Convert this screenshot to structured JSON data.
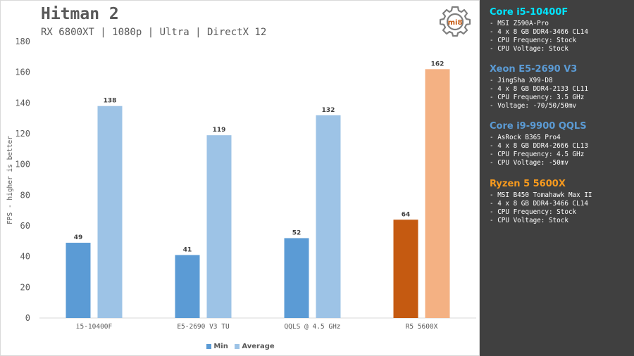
{
  "chart": {
    "title": "Hitman 2",
    "subtitle": "RX 6800XT | 1080p | Ultra | DirectX 12",
    "logo_text": "mi8"
  },
  "legend": {
    "items": [
      {
        "label": "Min",
        "color": "#5b9bd5"
      },
      {
        "label": "Average",
        "color": "#9dc3e6"
      }
    ]
  },
  "chart_data": {
    "type": "bar",
    "title": "Hitman 2",
    "subtitle": "RX 6800XT | 1080p | Ultra | DirectX 12",
    "xlabel": "",
    "ylabel": "FPS - higher is better",
    "ylim": [
      0,
      180
    ],
    "yticks": [
      0,
      20,
      40,
      60,
      80,
      100,
      120,
      140,
      160,
      180
    ],
    "grid": false,
    "legend_position": "bottom",
    "categories": [
      "i5-10400F",
      "E5-2690 V3 TU",
      "QQLS @ 4.5 GHz",
      "R5 5600X"
    ],
    "series": [
      {
        "name": "Min",
        "values": [
          49,
          41,
          52,
          64
        ],
        "colors": [
          "#5b9bd5",
          "#5b9bd5",
          "#5b9bd5",
          "#c55a11"
        ]
      },
      {
        "name": "Average",
        "values": [
          138,
          119,
          132,
          162
        ],
        "colors": [
          "#9dc3e6",
          "#9dc3e6",
          "#9dc3e6",
          "#f4b183"
        ]
      }
    ]
  },
  "specs": [
    {
      "title": "Core i5-10400F",
      "color": "#00e5ff",
      "lines": [
        "- MSI Z590A-Pro",
        "- 4 x 8 GB DDR4-3466 CL14",
        "- CPU Frequency: Stock",
        "- CPU Voltage: Stock"
      ]
    },
    {
      "title": "Xeon E5-2690 V3",
      "color": "#5b9bd5",
      "lines": [
        "- JingSha X99-D8",
        "- 4 x 8 GB DDR4-2133 CL11",
        "- CPU Frequency: 3.5 GHz",
        "- Voltage: -70/50/50mv"
      ]
    },
    {
      "title": "Core i9-9900 QQLS",
      "color": "#5b9bd5",
      "lines": [
        "- AsRock B365 Pro4",
        "- 4 x 8 GB DDR4-2666 CL13",
        "- CPU Frequency: 4.5 GHz",
        "- CPU Voltage: -50mv"
      ]
    },
    {
      "title": "Ryzen 5 5600X",
      "color": "#f79a1e",
      "lines": [
        "- MSI B450 Tomahawk Max II",
        "- 4 x 8 GB DDR4-3466 CL14",
        "- CPU Frequency: Stock",
        "- CPU Voltage: Stock"
      ]
    }
  ]
}
